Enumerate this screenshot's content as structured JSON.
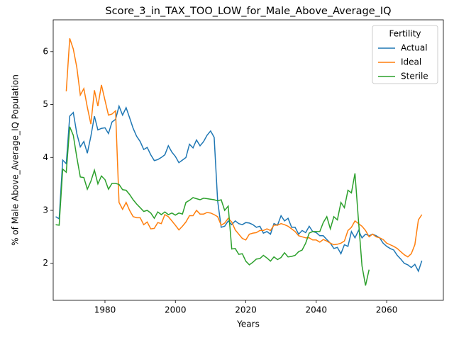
{
  "chart_data": {
    "type": "line",
    "title": "Score_3_in_TAX_TOO_LOW_for_Male_Above_Average_IQ",
    "xlabel": "Years",
    "ylabel": "% of Male Above_Average_IQ Population",
    "legend_title": "Fertility",
    "legend": "upper right",
    "x": [
      1966,
      1967,
      1968,
      1969,
      1970,
      1971,
      1972,
      1973,
      1974,
      1975,
      1976,
      1977,
      1978,
      1979,
      1980,
      1981,
      1982,
      1983,
      1984,
      1985,
      1986,
      1987,
      1988,
      1989,
      1990,
      1991,
      1992,
      1993,
      1994,
      1995,
      1996,
      1997,
      1998,
      1999,
      2000,
      2001,
      2002,
      2003,
      2004,
      2005,
      2006,
      2007,
      2008,
      2009,
      2010,
      2011,
      2012,
      2013,
      2014,
      2015,
      2016,
      2017,
      2018,
      2019,
      2020,
      2021,
      2022,
      2023,
      2024,
      2025,
      2026,
      2027,
      2028,
      2029,
      2030,
      2031,
      2032,
      2033,
      2034,
      2035,
      2036,
      2037,
      2038,
      2039,
      2040,
      2041,
      2042,
      2043,
      2044,
      2045,
      2046,
      2047,
      2048,
      2049,
      2050,
      2051,
      2052,
      2053,
      2054,
      2055,
      2056,
      2057,
      2058,
      2059,
      2060,
      2061,
      2062,
      2063,
      2064,
      2065,
      2066,
      2067,
      2068,
      2069,
      2070
    ],
    "series": [
      {
        "name": "Actual",
        "color": "#1f77b4",
        "values": [
          2.88,
          2.84,
          3.95,
          3.88,
          4.78,
          4.85,
          4.45,
          4.2,
          4.3,
          4.08,
          4.4,
          4.78,
          4.52,
          4.55,
          4.56,
          4.45,
          4.67,
          4.72,
          4.97,
          4.8,
          4.94,
          4.75,
          4.55,
          4.4,
          4.3,
          4.15,
          4.19,
          4.05,
          3.94,
          3.96,
          4.0,
          4.05,
          4.22,
          4.1,
          4.02,
          3.9,
          3.95,
          4.0,
          4.25,
          4.18,
          4.33,
          4.22,
          4.3,
          4.42,
          4.5,
          4.38,
          3.18,
          2.68,
          2.7,
          2.8,
          2.73,
          2.8,
          2.75,
          2.73,
          2.77,
          2.76,
          2.73,
          2.68,
          2.7,
          2.57,
          2.6,
          2.55,
          2.75,
          2.72,
          2.9,
          2.8,
          2.85,
          2.68,
          2.68,
          2.55,
          2.62,
          2.58,
          2.7,
          2.6,
          2.58,
          2.52,
          2.52,
          2.45,
          2.38,
          2.28,
          2.3,
          2.18,
          2.35,
          2.32,
          2.6,
          2.48,
          2.62,
          2.48,
          2.55,
          2.52,
          2.55,
          2.52,
          2.48,
          2.38,
          2.32,
          2.28,
          2.25,
          2.15,
          2.08,
          2.0,
          1.97,
          1.92,
          1.98,
          1.85,
          2.05
        ]
      },
      {
        "name": "Ideal",
        "color": "#ff7f0e",
        "values": [
          null,
          null,
          null,
          5.25,
          6.25,
          6.05,
          5.7,
          5.18,
          5.3,
          4.95,
          4.63,
          5.27,
          4.97,
          5.37,
          5.08,
          4.8,
          4.82,
          4.88,
          3.15,
          3.02,
          3.15,
          3.0,
          2.88,
          2.86,
          2.86,
          2.73,
          2.78,
          2.65,
          2.66,
          2.77,
          2.75,
          2.92,
          2.88,
          2.8,
          2.72,
          2.63,
          2.7,
          2.78,
          2.9,
          2.9,
          3.0,
          2.93,
          2.93,
          2.96,
          2.95,
          2.92,
          2.88,
          2.72,
          2.76,
          2.85,
          2.78,
          2.63,
          2.55,
          2.47,
          2.44,
          2.55,
          2.57,
          2.58,
          2.62,
          2.62,
          2.65,
          2.62,
          2.72,
          2.72,
          2.75,
          2.73,
          2.7,
          2.65,
          2.6,
          2.52,
          2.5,
          2.48,
          2.48,
          2.44,
          2.44,
          2.4,
          2.45,
          2.42,
          2.38,
          2.35,
          2.36,
          2.38,
          2.42,
          2.62,
          2.68,
          2.8,
          2.75,
          2.7,
          2.62,
          2.5,
          2.55,
          2.5,
          2.48,
          2.45,
          2.38,
          2.35,
          2.32,
          2.28,
          2.22,
          2.16,
          2.12,
          2.18,
          2.35,
          2.82,
          2.92
        ]
      },
      {
        "name": "Sterile",
        "color": "#2ca02c",
        "values": [
          2.73,
          2.72,
          3.78,
          3.72,
          4.58,
          4.42,
          4.0,
          3.63,
          3.62,
          3.4,
          3.55,
          3.76,
          3.5,
          3.65,
          3.58,
          3.4,
          3.51,
          3.51,
          3.49,
          3.39,
          3.38,
          3.3,
          3.2,
          3.12,
          3.05,
          2.98,
          3.0,
          2.95,
          2.85,
          2.97,
          2.92,
          2.97,
          2.92,
          2.95,
          2.91,
          2.95,
          2.93,
          3.15,
          3.19,
          3.24,
          3.22,
          3.2,
          3.23,
          3.22,
          3.21,
          3.2,
          3.18,
          3.2,
          3.0,
          3.08,
          2.27,
          2.28,
          2.17,
          2.18,
          2.04,
          1.97,
          2.02,
          2.08,
          2.09,
          2.15,
          2.1,
          2.04,
          2.12,
          2.07,
          2.11,
          2.2,
          2.12,
          2.13,
          2.15,
          2.22,
          2.25,
          2.38,
          2.57,
          2.6,
          2.6,
          2.6,
          2.77,
          2.88,
          2.65,
          2.88,
          2.82,
          3.15,
          3.05,
          3.38,
          3.33,
          3.7,
          2.8,
          1.95,
          1.58,
          1.88,
          null,
          null,
          null,
          null,
          null,
          null,
          null,
          null,
          null,
          null,
          null,
          null,
          null,
          null,
          null
        ]
      }
    ],
    "xlim": [
      1965.3,
      2076.1
    ],
    "xticks": [
      1980,
      2000,
      2020,
      2040,
      2060
    ],
    "ylim": [
      1.3,
      6.6
    ],
    "yticks": [
      2,
      3,
      4,
      5,
      6
    ]
  }
}
